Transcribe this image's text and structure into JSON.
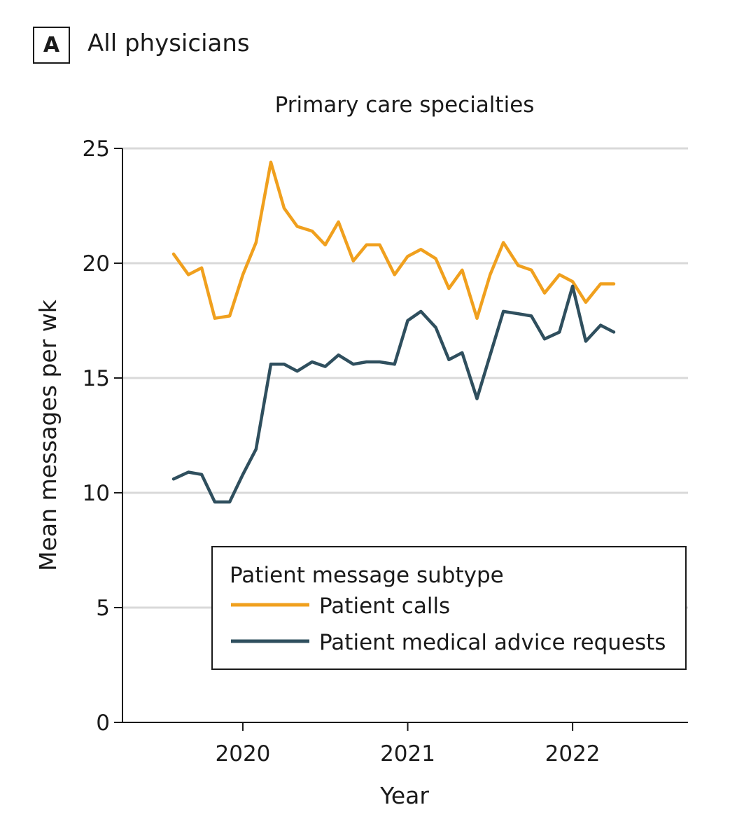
{
  "panel": {
    "letter": "A",
    "title": "All physicians"
  },
  "chart_data": {
    "type": "line",
    "title": "Primary care specialties",
    "xlabel": "Year",
    "ylabel": "Mean messages per wk",
    "xlim": [
      2019.27,
      2022.7
    ],
    "ylim": [
      0,
      25
    ],
    "yticks": [
      0,
      5,
      10,
      15,
      20,
      25
    ],
    "xticks": [
      2020,
      2021,
      2022
    ],
    "grid": "horizontal",
    "legend": {
      "title": "Patient message subtype",
      "position": "lower-right"
    },
    "series": [
      {
        "name": "Patient calls",
        "color": "#f0a01e",
        "x": [
          2019.58,
          2019.67,
          2019.75,
          2019.83,
          2019.92,
          2020.0,
          2020.08,
          2020.17,
          2020.25,
          2020.33,
          2020.42,
          2020.5,
          2020.58,
          2020.67,
          2020.75,
          2020.83,
          2020.92,
          2021.0,
          2021.08,
          2021.17,
          2021.25,
          2021.33,
          2021.42,
          2021.5,
          2021.58,
          2021.67,
          2021.75,
          2021.83,
          2021.92,
          2022.0,
          2022.08,
          2022.17,
          2022.25
        ],
        "values": [
          20.4,
          19.5,
          19.8,
          17.6,
          17.7,
          19.5,
          20.9,
          24.4,
          22.4,
          21.6,
          21.4,
          20.8,
          21.8,
          20.1,
          20.8,
          20.8,
          19.5,
          20.3,
          20.6,
          20.2,
          18.9,
          19.7,
          17.6,
          19.5,
          20.9,
          19.9,
          19.7,
          18.7,
          19.5,
          19.2,
          18.3,
          19.1,
          19.1
        ]
      },
      {
        "name": "Patient medical advice requests",
        "color": "#2f4f5e",
        "x": [
          2019.58,
          2019.67,
          2019.75,
          2019.83,
          2019.92,
          2020.0,
          2020.08,
          2020.17,
          2020.25,
          2020.33,
          2020.42,
          2020.5,
          2020.58,
          2020.67,
          2020.75,
          2020.83,
          2020.92,
          2021.0,
          2021.08,
          2021.17,
          2021.25,
          2021.33,
          2021.42,
          2021.5,
          2021.58,
          2021.67,
          2021.75,
          2021.83,
          2021.92,
          2022.0,
          2022.08,
          2022.17,
          2022.25
        ],
        "values": [
          10.6,
          10.9,
          10.8,
          9.6,
          9.6,
          10.8,
          11.9,
          15.6,
          15.6,
          15.3,
          15.7,
          15.5,
          16.0,
          15.6,
          15.7,
          15.7,
          15.6,
          17.5,
          17.9,
          17.2,
          15.8,
          16.1,
          14.1,
          16.0,
          17.9,
          17.8,
          17.7,
          16.7,
          17.0,
          19.0,
          16.6,
          17.3,
          17.0
        ]
      }
    ]
  }
}
